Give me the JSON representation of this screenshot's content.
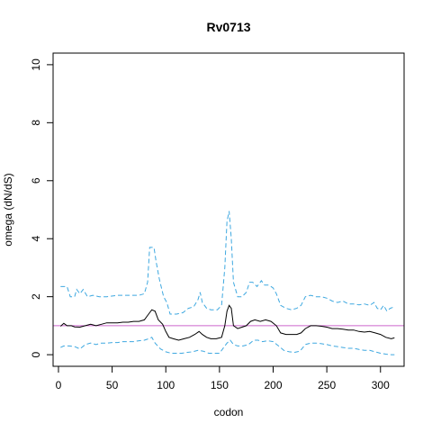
{
  "chart_data": {
    "type": "line",
    "title": "Rv0713",
    "xlabel": "codon",
    "ylabel": "omega (dN/dS)",
    "xlim": [
      -5,
      322
    ],
    "ylim": [
      -0.4,
      10.4
    ],
    "xticks": [
      0,
      50,
      100,
      150,
      200,
      250,
      300
    ],
    "yticks": [
      0,
      2,
      4,
      6,
      8,
      10
    ],
    "x_tick_labels": [
      "0",
      "50",
      "100",
      "150",
      "200",
      "250",
      "300"
    ],
    "y_tick_labels": [
      "0",
      "2",
      "4",
      "6",
      "8",
      "10"
    ],
    "grid": false,
    "reference_line": {
      "y": 1.0,
      "color": "#cc66cc"
    },
    "series": [
      {
        "role": "estimate",
        "color": "#000000",
        "dash": "solid",
        "points": [
          [
            2,
            0.98
          ],
          [
            5,
            1.08
          ],
          [
            8,
            1.0
          ],
          [
            12,
            1.0
          ],
          [
            15,
            0.96
          ],
          [
            20,
            0.95
          ],
          [
            25,
            1.0
          ],
          [
            30,
            1.05
          ],
          [
            35,
            1.0
          ],
          [
            40,
            1.05
          ],
          [
            45,
            1.1
          ],
          [
            50,
            1.1
          ],
          [
            55,
            1.1
          ],
          [
            60,
            1.12
          ],
          [
            65,
            1.12
          ],
          [
            70,
            1.15
          ],
          [
            75,
            1.15
          ],
          [
            80,
            1.2
          ],
          [
            84,
            1.4
          ],
          [
            87,
            1.55
          ],
          [
            90,
            1.5
          ],
          [
            93,
            1.2
          ],
          [
            97,
            1.05
          ],
          [
            100,
            0.8
          ],
          [
            103,
            0.6
          ],
          [
            107,
            0.55
          ],
          [
            112,
            0.5
          ],
          [
            117,
            0.55
          ],
          [
            122,
            0.6
          ],
          [
            127,
            0.7
          ],
          [
            131,
            0.8
          ],
          [
            134,
            0.7
          ],
          [
            138,
            0.6
          ],
          [
            142,
            0.55
          ],
          [
            147,
            0.55
          ],
          [
            152,
            0.6
          ],
          [
            155,
            1.0
          ],
          [
            157,
            1.5
          ],
          [
            159,
            1.7
          ],
          [
            161,
            1.6
          ],
          [
            163,
            1.0
          ],
          [
            167,
            0.9
          ],
          [
            171,
            0.95
          ],
          [
            175,
            1.0
          ],
          [
            179,
            1.15
          ],
          [
            183,
            1.2
          ],
          [
            188,
            1.15
          ],
          [
            193,
            1.2
          ],
          [
            198,
            1.15
          ],
          [
            203,
            1.0
          ],
          [
            207,
            0.75
          ],
          [
            212,
            0.7
          ],
          [
            217,
            0.7
          ],
          [
            222,
            0.7
          ],
          [
            226,
            0.75
          ],
          [
            230,
            0.9
          ],
          [
            235,
            1.0
          ],
          [
            240,
            1.0
          ],
          [
            245,
            0.98
          ],
          [
            250,
            0.95
          ],
          [
            255,
            0.9
          ],
          [
            260,
            0.9
          ],
          [
            265,
            0.88
          ],
          [
            270,
            0.85
          ],
          [
            275,
            0.85
          ],
          [
            280,
            0.8
          ],
          [
            285,
            0.78
          ],
          [
            290,
            0.8
          ],
          [
            295,
            0.75
          ],
          [
            300,
            0.7
          ],
          [
            305,
            0.6
          ],
          [
            310,
            0.55
          ],
          [
            313,
            0.58
          ]
        ]
      },
      {
        "role": "upper",
        "color": "#3ea8e0",
        "dash": "dashed",
        "points": [
          [
            2,
            2.35
          ],
          [
            8,
            2.35
          ],
          [
            11,
            2.0
          ],
          [
            15,
            2.0
          ],
          [
            17,
            2.25
          ],
          [
            20,
            2.1
          ],
          [
            23,
            2.25
          ],
          [
            27,
            2.0
          ],
          [
            32,
            2.05
          ],
          [
            38,
            2.0
          ],
          [
            45,
            2.0
          ],
          [
            55,
            2.05
          ],
          [
            65,
            2.05
          ],
          [
            75,
            2.05
          ],
          [
            80,
            2.1
          ],
          [
            83,
            2.5
          ],
          [
            85,
            3.7
          ],
          [
            89,
            3.7
          ],
          [
            91,
            3.2
          ],
          [
            94,
            2.6
          ],
          [
            98,
            2.0
          ],
          [
            101,
            1.8
          ],
          [
            104,
            1.4
          ],
          [
            110,
            1.4
          ],
          [
            116,
            1.45
          ],
          [
            121,
            1.6
          ],
          [
            126,
            1.65
          ],
          [
            130,
            1.9
          ],
          [
            132,
            2.15
          ],
          [
            134,
            1.8
          ],
          [
            138,
            1.6
          ],
          [
            142,
            1.55
          ],
          [
            148,
            1.55
          ],
          [
            152,
            1.7
          ],
          [
            155,
            3.0
          ],
          [
            157,
            4.6
          ],
          [
            159,
            4.95
          ],
          [
            161,
            4.0
          ],
          [
            163,
            2.5
          ],
          [
            167,
            2.0
          ],
          [
            171,
            2.0
          ],
          [
            175,
            2.15
          ],
          [
            178,
            2.5
          ],
          [
            181,
            2.5
          ],
          [
            185,
            2.35
          ],
          [
            189,
            2.55
          ],
          [
            192,
            2.4
          ],
          [
            196,
            2.4
          ],
          [
            200,
            2.3
          ],
          [
            203,
            2.1
          ],
          [
            207,
            1.7
          ],
          [
            212,
            1.6
          ],
          [
            217,
            1.55
          ],
          [
            222,
            1.6
          ],
          [
            226,
            1.7
          ],
          [
            230,
            2.0
          ],
          [
            235,
            2.05
          ],
          [
            240,
            2.0
          ],
          [
            245,
            2.0
          ],
          [
            250,
            1.95
          ],
          [
            255,
            1.85
          ],
          [
            260,
            1.8
          ],
          [
            265,
            1.85
          ],
          [
            270,
            1.75
          ],
          [
            275,
            1.75
          ],
          [
            280,
            1.72
          ],
          [
            285,
            1.75
          ],
          [
            290,
            1.7
          ],
          [
            294,
            1.8
          ],
          [
            297,
            1.6
          ],
          [
            300,
            1.55
          ],
          [
            303,
            1.7
          ],
          [
            306,
            1.5
          ],
          [
            309,
            1.6
          ],
          [
            313,
            1.65
          ]
        ]
      },
      {
        "role": "lower",
        "color": "#3ea8e0",
        "dash": "dashed",
        "points": [
          [
            2,
            0.25
          ],
          [
            5,
            0.3
          ],
          [
            10,
            0.3
          ],
          [
            15,
            0.28
          ],
          [
            20,
            0.2
          ],
          [
            25,
            0.35
          ],
          [
            30,
            0.4
          ],
          [
            35,
            0.35
          ],
          [
            40,
            0.4
          ],
          [
            45,
            0.4
          ],
          [
            50,
            0.42
          ],
          [
            55,
            0.42
          ],
          [
            60,
            0.45
          ],
          [
            65,
            0.45
          ],
          [
            70,
            0.45
          ],
          [
            75,
            0.48
          ],
          [
            80,
            0.5
          ],
          [
            84,
            0.55
          ],
          [
            87,
            0.6
          ],
          [
            90,
            0.4
          ],
          [
            95,
            0.2
          ],
          [
            100,
            0.1
          ],
          [
            105,
            0.05
          ],
          [
            110,
            0.05
          ],
          [
            115,
            0.05
          ],
          [
            120,
            0.08
          ],
          [
            125,
            0.1
          ],
          [
            130,
            0.15
          ],
          [
            135,
            0.12
          ],
          [
            140,
            0.05
          ],
          [
            145,
            0.05
          ],
          [
            150,
            0.05
          ],
          [
            153,
            0.2
          ],
          [
            157,
            0.4
          ],
          [
            160,
            0.5
          ],
          [
            163,
            0.35
          ],
          [
            167,
            0.3
          ],
          [
            172,
            0.3
          ],
          [
            177,
            0.35
          ],
          [
            182,
            0.5
          ],
          [
            186,
            0.5
          ],
          [
            190,
            0.45
          ],
          [
            195,
            0.48
          ],
          [
            200,
            0.45
          ],
          [
            205,
            0.3
          ],
          [
            210,
            0.15
          ],
          [
            215,
            0.1
          ],
          [
            220,
            0.08
          ],
          [
            225,
            0.12
          ],
          [
            230,
            0.35
          ],
          [
            235,
            0.4
          ],
          [
            240,
            0.4
          ],
          [
            245,
            0.38
          ],
          [
            250,
            0.35
          ],
          [
            255,
            0.3
          ],
          [
            260,
            0.28
          ],
          [
            265,
            0.25
          ],
          [
            270,
            0.22
          ],
          [
            275,
            0.22
          ],
          [
            280,
            0.18
          ],
          [
            285,
            0.15
          ],
          [
            290,
            0.15
          ],
          [
            295,
            0.1
          ],
          [
            300,
            0.05
          ],
          [
            305,
            0.02
          ],
          [
            310,
            0.0
          ],
          [
            313,
            0.0
          ]
        ]
      }
    ]
  }
}
